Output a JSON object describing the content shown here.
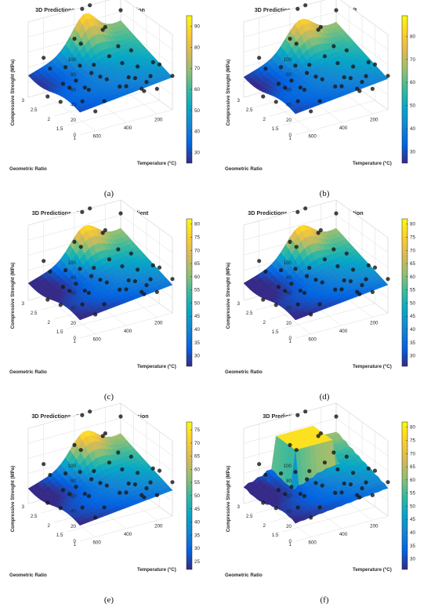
{
  "colors": {
    "colormap": "parula",
    "parula_stops": [
      "#352a87",
      "#0363e1",
      "#1485d4",
      "#06a7c6",
      "#38b99e",
      "#92bf73",
      "#d9ba56",
      "#fcce2e",
      "#f9fb0e"
    ],
    "point_color": "#1a1a1a",
    "grid_color": "#dddddd"
  },
  "chart_data": [
    {
      "type": "surface",
      "title": "3D Predictions - Bayesian Regularization",
      "xlabel": "Geometric Ratio",
      "ylabel": "Temperature (°C)",
      "zlabel": "Compressive Strenght (MPa)",
      "x_ticks": [
        "1",
        "1.5",
        "2",
        "2.5",
        "3"
      ],
      "y_ticks": [
        "200",
        "400",
        "600"
      ],
      "z_ticks": [
        "0",
        "20",
        "40",
        "60",
        "80",
        "100"
      ],
      "colorbar_ticks": [
        "30",
        "40",
        "50",
        "60",
        "70",
        "80",
        "90"
      ],
      "colorbar_range": [
        25,
        95
      ],
      "caption": "(a)"
    },
    {
      "type": "surface",
      "title": "3D Predictions - Levenberg-Marquardt",
      "xlabel": "Geometric Ratio",
      "ylabel": "Temperature (°C)",
      "zlabel": "Compressive Strenght (MPa)",
      "x_ticks": [
        "1",
        "1.5",
        "2",
        "2.5",
        "3"
      ],
      "y_ticks": [
        "200",
        "400",
        "600"
      ],
      "z_ticks": [
        "0",
        "20",
        "40",
        "60",
        "80",
        "100"
      ],
      "colorbar_ticks": [
        "30",
        "40",
        "50",
        "60",
        "70",
        "80"
      ],
      "colorbar_range": [
        25,
        89
      ],
      "caption": "(b)"
    },
    {
      "type": "surface",
      "title": "3D Predictions - Scaled Conjugate Gradient",
      "xlabel": "Geometric Ratio",
      "ylabel": "Temperature (°C)",
      "zlabel": "Compressive Strenght (MPa)",
      "x_ticks": [
        "1",
        "1.5",
        "2",
        "2.5",
        "3"
      ],
      "y_ticks": [
        "200",
        "400",
        "600"
      ],
      "z_ticks": [
        "0",
        "20",
        "40",
        "60",
        "80",
        "100"
      ],
      "colorbar_ticks": [
        "30",
        "35",
        "40",
        "45",
        "50",
        "55",
        "60",
        "65",
        "70",
        "75",
        "80"
      ],
      "colorbar_range": [
        26,
        82
      ],
      "caption": "(c)"
    },
    {
      "type": "surface",
      "title": "3D Predictions - Resilient Backpropagation",
      "xlabel": "Geometric Ratio",
      "ylabel": "Temperature (°C)",
      "zlabel": "Compressive Strenght (MPa)",
      "x_ticks": [
        "1",
        "1.5",
        "2",
        "2.5",
        "3"
      ],
      "y_ticks": [
        "200",
        "400",
        "600"
      ],
      "z_ticks": [
        "0",
        "20",
        "40",
        "60",
        "80",
        "100"
      ],
      "colorbar_ticks": [
        "30",
        "35",
        "40",
        "45",
        "50",
        "55",
        "60",
        "65",
        "70",
        "75",
        "80"
      ],
      "colorbar_range": [
        26,
        82
      ],
      "caption": "(d)"
    },
    {
      "type": "surface",
      "title": "3D Predictions - Support Vector Regression",
      "xlabel": "Geometric Ratio",
      "ylabel": "Temperature (°C)",
      "zlabel": "Compressive Strenght (MPa)",
      "x_ticks": [
        "1",
        "1.5",
        "2",
        "2.5",
        "3"
      ],
      "y_ticks": [
        "200",
        "400",
        "600"
      ],
      "z_ticks": [
        "0",
        "20",
        "40",
        "60",
        "80",
        "100"
      ],
      "colorbar_ticks": [
        "25",
        "30",
        "35",
        "40",
        "45",
        "50",
        "55",
        "60",
        "65",
        "70",
        "75"
      ],
      "colorbar_range": [
        22,
        78
      ],
      "caption": "(e)"
    },
    {
      "type": "surface",
      "title": "3D Predictions - Random Forest",
      "xlabel": "Geometric Ratio",
      "ylabel": "Temperature (°C)",
      "zlabel": "Compressive Strenght (MPa)",
      "x_ticks": [
        "1",
        "1.5",
        "2",
        "2.5",
        "3"
      ],
      "y_ticks": [
        "200",
        "400",
        "600"
      ],
      "z_ticks": [
        "0",
        "20",
        "40",
        "60",
        "80",
        "100"
      ],
      "colorbar_ticks": [
        "30",
        "35",
        "40",
        "45",
        "50",
        "55",
        "60",
        "65",
        "70",
        "75",
        "80"
      ],
      "colorbar_range": [
        26,
        82
      ],
      "caption": "(f)"
    }
  ]
}
